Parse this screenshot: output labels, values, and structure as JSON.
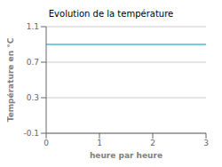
{
  "chart_data": {
    "type": "line",
    "title": "Evolution de la température",
    "xlabel": "heure par heure",
    "ylabel": "Température en °C",
    "x": [
      0,
      3
    ],
    "values": [
      0.9,
      0.9
    ],
    "color": "#44bbdd",
    "xlim": [
      0,
      3
    ],
    "ylim": [
      -0.1,
      1.1
    ],
    "xticks": [
      0,
      1,
      2,
      3
    ],
    "yticks": [
      -0.1,
      0.3,
      0.7,
      1.1
    ],
    "grid": true
  }
}
